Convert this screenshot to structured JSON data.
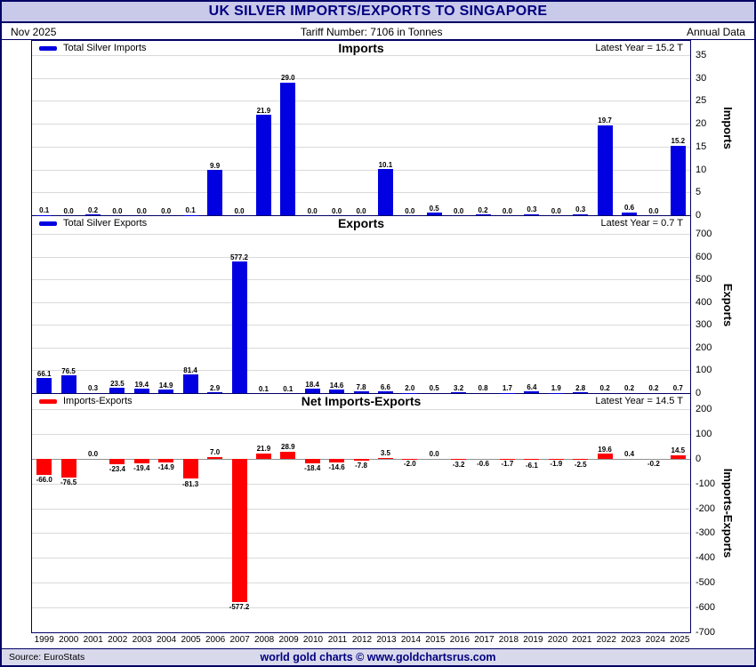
{
  "header": {
    "title": "UK SILVER IMPORTS/EXPORTS TO SINGAPORE",
    "date": "Nov  2025",
    "tariff": "Tariff Number: 7106 in Tonnes",
    "annual": "Annual Data"
  },
  "footer": {
    "source": "Source: EuroStats",
    "brand": "world gold charts © www.goldchartsrus.com"
  },
  "colors": {
    "accent": "#000080",
    "header_bg": "#c9c9ea",
    "import_bar": "#0000e0",
    "export_bar": "#0000e0",
    "net_bar": "#ff0000",
    "grid": "#dadada"
  },
  "chart_data": [
    {
      "type": "bar",
      "title": "Imports",
      "legend": "Total Silver Imports",
      "latest_year_label": "Latest Year = 15.2 T",
      "ylabel": "Imports",
      "xlabel": "",
      "ylim": [
        0,
        35
      ],
      "yticks": [
        35,
        30,
        25,
        20,
        15,
        10,
        5,
        0
      ],
      "grid": true,
      "legend_position": "top-left",
      "bar_color_key": "import_bar",
      "categories": [
        1999,
        2000,
        2001,
        2002,
        2003,
        2004,
        2005,
        2006,
        2007,
        2008,
        2009,
        2010,
        2011,
        2012,
        2013,
        2014,
        2015,
        2016,
        2017,
        2018,
        2019,
        2020,
        2021,
        2022,
        2023,
        2024,
        2025
      ],
      "values": [
        0.1,
        0.0,
        0.2,
        0.0,
        0.0,
        0.0,
        0.1,
        9.9,
        0.0,
        21.9,
        29.0,
        0.0,
        0.0,
        0.0,
        10.1,
        0.0,
        0.5,
        0.0,
        0.2,
        0.0,
        0.3,
        0.0,
        0.3,
        19.7,
        0.6,
        0.0,
        15.2
      ]
    },
    {
      "type": "bar",
      "title": "Exports",
      "legend": "Total Silver Exports",
      "latest_year_label": "Latest Year = 0.7 T",
      "ylabel": "Exports",
      "xlabel": "",
      "ylim": [
        0,
        700
      ],
      "yticks": [
        700,
        600,
        500,
        400,
        300,
        200,
        100,
        0
      ],
      "grid": true,
      "legend_position": "top-left",
      "bar_color_key": "export_bar",
      "categories": [
        1999,
        2000,
        2001,
        2002,
        2003,
        2004,
        2005,
        2006,
        2007,
        2008,
        2009,
        2010,
        2011,
        2012,
        2013,
        2014,
        2015,
        2016,
        2017,
        2018,
        2019,
        2020,
        2021,
        2022,
        2023,
        2024,
        2025
      ],
      "values": [
        66.1,
        76.5,
        0.3,
        23.5,
        19.4,
        14.9,
        81.4,
        2.9,
        577.2,
        0.1,
        0.1,
        18.4,
        14.6,
        7.8,
        6.6,
        2.0,
        0.5,
        3.2,
        0.8,
        1.7,
        6.4,
        1.9,
        2.8,
        0.2,
        0.2,
        0.2,
        0.7
      ]
    },
    {
      "type": "bar",
      "title": "Net Imports-Exports",
      "legend": "Imports-Exports",
      "latest_year_label": "Latest Year = 14.5 T",
      "ylabel": "Imports-Exports",
      "xlabel": "",
      "ylim": [
        -700,
        200
      ],
      "yticks": [
        200,
        100,
        0,
        -100,
        -200,
        -300,
        -400,
        -500,
        -600,
        -700
      ],
      "grid": true,
      "legend_position": "top-left",
      "bar_color_key": "net_bar",
      "categories": [
        1999,
        2000,
        2001,
        2002,
        2003,
        2004,
        2005,
        2006,
        2007,
        2008,
        2009,
        2010,
        2011,
        2012,
        2013,
        2014,
        2015,
        2016,
        2017,
        2018,
        2019,
        2020,
        2021,
        2022,
        2023,
        2024,
        2025
      ],
      "values": [
        -66.0,
        -76.5,
        0.0,
        -23.4,
        -19.4,
        -14.9,
        -81.3,
        7.0,
        -577.2,
        21.9,
        28.9,
        -18.4,
        -14.6,
        -7.8,
        3.5,
        -2.0,
        0.0,
        -3.2,
        -0.6,
        -1.7,
        -6.1,
        -1.9,
        -2.5,
        19.6,
        0.4,
        -0.2,
        14.5
      ]
    }
  ]
}
